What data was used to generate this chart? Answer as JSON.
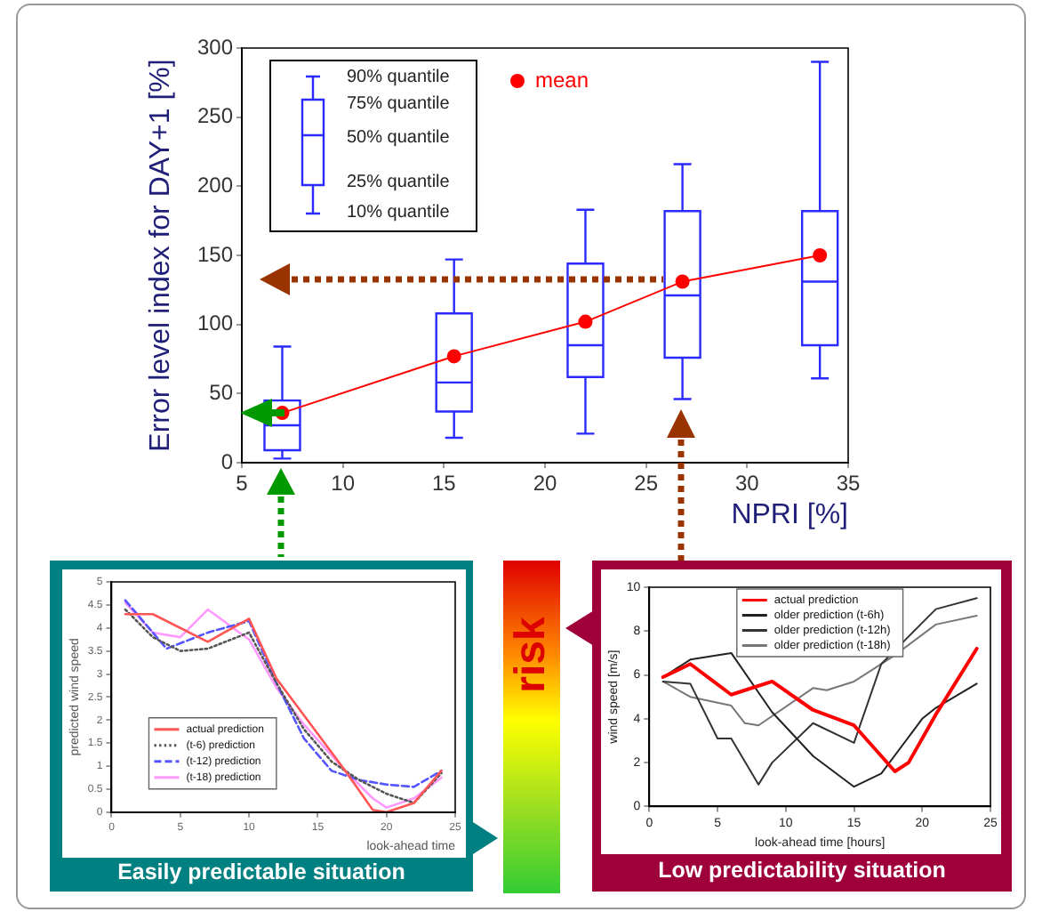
{
  "chart_data": [
    {
      "type": "box",
      "ylabel": "Error level index for DAY+1 [%]",
      "xlabel": "NPRI [%]",
      "x": [
        7,
        15.5,
        22,
        26.8,
        33.6
      ],
      "color": "#2b2bff",
      "boxes": [
        {
          "low": 3,
          "q1": 9,
          "median": 27,
          "q3": 45,
          "high": 84
        },
        {
          "low": 18,
          "q1": 37,
          "median": 58,
          "q3": 108,
          "high": 147
        },
        {
          "low": 21,
          "q1": 62,
          "median": 85,
          "q3": 144,
          "high": 183
        },
        {
          "low": 46,
          "q1": 76,
          "median": 121,
          "q3": 182,
          "high": 216
        },
        {
          "low": 61,
          "q1": 85,
          "median": 131,
          "q3": 182,
          "high": 290
        }
      ],
      "series": [
        {
          "name": "mean",
          "type": "line",
          "color": "#ff0000",
          "values": [
            36,
            77,
            102,
            131,
            150
          ]
        }
      ],
      "marker": "circle",
      "legend": "top left",
      "annotations": [
        "90% quantile",
        "75% quantile",
        "50% quantile",
        "25% quantile",
        "10% quantile"
      ],
      "xlim": [
        5,
        35
      ],
      "xticks": [
        5,
        10,
        15,
        20,
        25,
        30,
        35
      ],
      "ylim": [
        0,
        300
      ],
      "yticks": [
        0,
        50,
        100,
        150,
        200,
        250,
        300
      ],
      "grid": false
    },
    {
      "type": "line",
      "title": "Easily predictable situation",
      "ylabel": "predicted wind speed",
      "xlabel": "look-ahead time",
      "series": [
        {
          "name": "actual prediction",
          "color": "#ff5555",
          "x": [
            1,
            3,
            4,
            7,
            10,
            12,
            15,
            17,
            19,
            20,
            22,
            24
          ],
          "values": [
            4.3,
            4.3,
            4.15,
            3.7,
            4.2,
            2.9,
            1.7,
            0.9,
            0.05,
            0,
            0.2,
            0.9
          ]
        },
        {
          "name": "(t-6) prediction",
          "color": "#555555",
          "line_style": "dotted",
          "x": [
            1,
            3,
            5,
            7,
            10,
            12,
            14,
            16,
            18,
            20,
            22,
            24
          ],
          "values": [
            4.4,
            3.8,
            3.5,
            3.55,
            3.9,
            2.8,
            1.8,
            1.1,
            0.7,
            0.4,
            0.2,
            0.85
          ]
        },
        {
          "name": "(t-12) prediction",
          "color": "#5555ff",
          "line_style": "dashed",
          "x": [
            1,
            4,
            7,
            10,
            12,
            14,
            16,
            18,
            20,
            22,
            24
          ],
          "values": [
            4.6,
            3.55,
            3.9,
            4.15,
            2.8,
            1.6,
            0.9,
            0.7,
            0.6,
            0.55,
            0.9
          ]
        },
        {
          "name": "(t-18) prediction",
          "color": "#ff99ff",
          "x": [
            1,
            3,
            5,
            7,
            10,
            12,
            14,
            17,
            19,
            20,
            22,
            24
          ],
          "values": [
            4.55,
            3.9,
            3.8,
            4.4,
            3.75,
            2.7,
            1.9,
            0.9,
            0.3,
            0.1,
            0.3,
            0.75
          ]
        }
      ],
      "legend": "bottom left",
      "xlim": [
        0,
        25
      ],
      "xticks": [
        0,
        5,
        10,
        15,
        20,
        25
      ],
      "ylim": [
        0,
        5
      ],
      "yticks": [
        0,
        0.5,
        1,
        1.5,
        2,
        2.5,
        3,
        3.5,
        4,
        4.5,
        5
      ],
      "grid": false
    },
    {
      "type": "other",
      "title": "risk"
    },
    {
      "type": "line",
      "title": "Low predictability situation",
      "ylabel": "wind speed [m/s]",
      "xlabel": "look-ahead time [hours]",
      "series": [
        {
          "name": "actual prediction",
          "color": "#ff0000",
          "x": [
            1,
            3,
            6,
            9,
            12,
            15,
            18,
            19,
            21,
            24
          ],
          "values": [
            5.9,
            6.5,
            5.1,
            5.7,
            4.4,
            3.7,
            1.6,
            2,
            4.2,
            7.2
          ]
        },
        {
          "name": "older prediction (t-6h)",
          "color": "#222222",
          "x": [
            1,
            3,
            6,
            9,
            12,
            15,
            17,
            20,
            21,
            24
          ],
          "values": [
            5.9,
            6.7,
            7,
            4.3,
            2.3,
            0.9,
            1.5,
            4,
            4.5,
            5.6
          ]
        },
        {
          "name": "older prediction (t-12h)",
          "color": "#333333",
          "x": [
            1,
            3,
            5,
            6,
            8,
            9,
            12,
            15,
            17,
            21,
            24
          ],
          "values": [
            5.7,
            5.6,
            3.1,
            3.1,
            1,
            2,
            3.8,
            2.9,
            6.5,
            9,
            9.5
          ]
        },
        {
          "name": "older prediction (t-18h)",
          "color": "#777777",
          "x": [
            1,
            3,
            6,
            7,
            8,
            12,
            13,
            15,
            18,
            21,
            24
          ],
          "values": [
            5.7,
            5,
            4.6,
            3.8,
            3.7,
            5.4,
            5.3,
            5.7,
            6.9,
            8.3,
            8.7
          ]
        }
      ],
      "legend": "top",
      "xlim": [
        0,
        25
      ],
      "xticks": [
        0,
        5,
        10,
        15,
        20,
        25
      ],
      "ylim": [
        0,
        10
      ],
      "yticks": [
        0,
        2,
        4,
        6,
        8,
        10
      ],
      "grid": false
    }
  ]
}
